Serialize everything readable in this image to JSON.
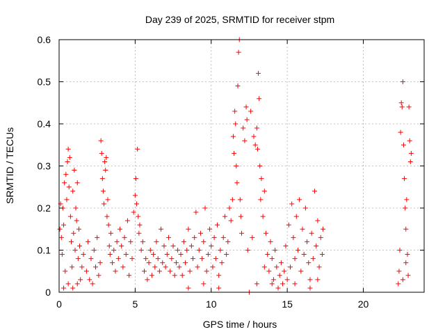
{
  "chart_data": {
    "type": "scatter",
    "title": "Day 239 of 2025, SRMTID for receiver stpm",
    "xlabel": "GPS time / hours",
    "ylabel": "SRMTID / TECUs",
    "xlim": [
      0,
      24
    ],
    "ylim": [
      0,
      0.6
    ],
    "xticks": [
      0,
      5,
      10,
      15,
      20
    ],
    "xtick_labels": [
      "0",
      "5",
      "10",
      "15",
      "20"
    ],
    "yticks": [
      0,
      0.1,
      0.2,
      0.3,
      0.4,
      0.5,
      0.6
    ],
    "ytick_labels": [
      "0",
      "0.1",
      "0.2",
      "0.3",
      "0.4",
      "0.5",
      "0.6"
    ],
    "grid": true,
    "marker": "plus",
    "color": "#ff0000",
    "series": [
      {
        "name": "stpm",
        "points": [
          [
            0.05,
            0.15
          ],
          [
            0.1,
            0.21
          ],
          [
            0.15,
            0.13
          ],
          [
            0.2,
            0.09
          ],
          [
            0.25,
            0.2
          ],
          [
            0.3,
            0.16
          ],
          [
            0.35,
            0.26
          ],
          [
            0.4,
            0.05
          ],
          [
            0.45,
            0.28
          ],
          [
            0.5,
            0.22
          ],
          [
            0.55,
            0.31
          ],
          [
            0.6,
            0.34
          ],
          [
            0.65,
            0.25
          ],
          [
            0.7,
            0.32
          ],
          [
            0.75,
            0.18
          ],
          [
            0.8,
            0.12
          ],
          [
            0.85,
            0.06
          ],
          [
            0.9,
            0.24
          ],
          [
            0.95,
            0.14
          ],
          [
            1.0,
            0.29
          ],
          [
            1.05,
            0.1
          ],
          [
            1.1,
            0.2
          ],
          [
            1.15,
            0.17
          ],
          [
            1.2,
            0.26
          ],
          [
            1.25,
            0.08
          ],
          [
            1.3,
            0.15
          ],
          [
            1.35,
            0.11
          ],
          [
            1.4,
            0.03
          ],
          [
            1.5,
            0.06
          ],
          [
            1.6,
            0.09
          ],
          [
            0.3,
            0.01
          ],
          [
            0.6,
            0.02
          ],
          [
            0.9,
            0.01
          ],
          [
            1.2,
            0.02
          ],
          [
            1.8,
            0.05
          ],
          [
            1.9,
            0.12
          ],
          [
            2.0,
            0.03
          ],
          [
            2.1,
            0.08
          ],
          [
            2.2,
            0.02
          ],
          [
            2.3,
            0.1
          ],
          [
            2.4,
            0.06
          ],
          [
            2.5,
            0.13
          ],
          [
            2.6,
            0.04
          ],
          [
            2.7,
            0.07
          ],
          [
            2.75,
            0.36
          ],
          [
            2.8,
            0.33
          ],
          [
            2.85,
            0.27
          ],
          [
            2.9,
            0.24
          ],
          [
            2.95,
            0.21
          ],
          [
            3.0,
            0.31
          ],
          [
            3.05,
            0.29
          ],
          [
            3.1,
            0.32
          ],
          [
            3.15,
            0.18
          ],
          [
            3.2,
            0.22
          ],
          [
            3.25,
            0.16
          ],
          [
            3.3,
            0.11
          ],
          [
            3.35,
            0.09
          ],
          [
            3.4,
            0.14
          ],
          [
            3.5,
            0.07
          ],
          [
            3.6,
            0.1
          ],
          [
            3.7,
            0.05
          ],
          [
            3.8,
            0.12
          ],
          [
            3.9,
            0.08
          ],
          [
            4.0,
            0.15
          ],
          [
            4.1,
            0.11
          ],
          [
            4.2,
            0.06
          ],
          [
            4.3,
            0.13
          ],
          [
            4.4,
            0.09
          ],
          [
            4.5,
            0.17
          ],
          [
            4.6,
            0.04
          ],
          [
            4.7,
            0.12
          ],
          [
            4.8,
            0.08
          ],
          [
            4.9,
            0.19
          ],
          [
            5.0,
            0.23
          ],
          [
            5.05,
            0.27
          ],
          [
            5.1,
            0.21
          ],
          [
            5.15,
            0.34
          ],
          [
            5.2,
            0.18
          ],
          [
            5.25,
            0.14
          ],
          [
            5.3,
            0.16
          ],
          [
            5.4,
            0.1
          ],
          [
            5.5,
            0.12
          ],
          [
            5.6,
            0.05
          ],
          [
            5.7,
            0.08
          ],
          [
            5.8,
            0.03
          ],
          [
            5.9,
            0.07
          ],
          [
            6.0,
            0.1
          ],
          [
            6.1,
            0.04
          ],
          [
            6.2,
            0.09
          ],
          [
            6.3,
            0.06
          ],
          [
            6.4,
            0.12
          ],
          [
            6.5,
            0.08
          ],
          [
            6.6,
            0.05
          ],
          [
            6.7,
            0.15
          ],
          [
            6.8,
            0.07
          ],
          [
            6.9,
            0.11
          ],
          [
            7.0,
            0.06
          ],
          [
            7.1,
            0.09
          ],
          [
            7.2,
            0.13
          ],
          [
            7.3,
            0.05
          ],
          [
            7.4,
            0.08
          ],
          [
            7.5,
            0.11
          ],
          [
            7.6,
            0.04
          ],
          [
            7.7,
            0.07
          ],
          [
            7.8,
            0.1
          ],
          [
            7.9,
            0.06
          ],
          [
            8.0,
            0.09
          ],
          [
            8.1,
            0.04
          ],
          [
            8.2,
            0.12
          ],
          [
            8.3,
            0.07
          ],
          [
            8.4,
            0.1
          ],
          [
            8.5,
            0.15
          ],
          [
            8.6,
            0.05
          ],
          [
            8.7,
            0.11
          ],
          [
            8.8,
            0.08
          ],
          [
            8.9,
            0.13
          ],
          [
            9.0,
            0.19
          ],
          [
            9.1,
            0.06
          ],
          [
            9.2,
            0.1
          ],
          [
            9.3,
            0.14
          ],
          [
            9.4,
            0.08
          ],
          [
            9.5,
            0.12
          ],
          [
            9.6,
            0.2
          ],
          [
            9.7,
            0.05
          ],
          [
            9.8,
            0.09
          ],
          [
            9.9,
            0.15
          ],
          [
            10.0,
            0.11
          ],
          [
            10.1,
            0.06
          ],
          [
            10.2,
            0.13
          ],
          [
            10.3,
            0.08
          ],
          [
            10.4,
            0.16
          ],
          [
            10.5,
            0.04
          ],
          [
            10.6,
            0.1
          ],
          [
            10.7,
            0.07
          ],
          [
            10.8,
            0.13
          ],
          [
            10.9,
            0.18
          ],
          [
            11.0,
            0.09
          ],
          [
            11.1,
            0.12
          ],
          [
            11.2,
            0.2
          ],
          [
            11.3,
            0.17
          ],
          [
            11.4,
            0.22
          ],
          [
            11.45,
            0.37
          ],
          [
            11.5,
            0.33
          ],
          [
            11.55,
            0.43
          ],
          [
            11.6,
            0.4
          ],
          [
            11.65,
            0.3
          ],
          [
            11.7,
            0.26
          ],
          [
            11.75,
            0.49
          ],
          [
            11.8,
            0.57
          ],
          [
            11.85,
            0.6
          ],
          [
            11.9,
            0.22
          ],
          [
            11.95,
            0.18
          ],
          [
            12.0,
            0.14
          ],
          [
            12.1,
            0.39
          ],
          [
            12.2,
            0.36
          ],
          [
            12.3,
            0.44
          ],
          [
            12.35,
            0.41
          ],
          [
            12.4,
            0.1
          ],
          [
            12.5,
            0.0
          ],
          [
            12.6,
            0.43
          ],
          [
            12.7,
            0.13
          ],
          [
            12.8,
            0.37
          ],
          [
            12.9,
            0.35
          ],
          [
            13.0,
            0.39
          ],
          [
            13.05,
            0.34
          ],
          [
            13.1,
            0.52
          ],
          [
            13.15,
            0.46
          ],
          [
            13.2,
            0.3
          ],
          [
            13.25,
            0.22
          ],
          [
            13.3,
            0.27
          ],
          [
            13.4,
            0.18
          ],
          [
            13.5,
            0.24
          ],
          [
            13.6,
            0.14
          ],
          [
            13.7,
            0.09
          ],
          [
            13.8,
            0.05
          ],
          [
            13.9,
            0.12
          ],
          [
            14.0,
            0.08
          ],
          [
            14.1,
            0.03
          ],
          [
            14.2,
            0.1
          ],
          [
            14.3,
            0.06
          ],
          [
            14.4,
            0.01
          ],
          [
            14.5,
            0.04
          ],
          [
            14.6,
            0.07
          ],
          [
            14.7,
            0.02
          ],
          [
            14.8,
            0.05
          ],
          [
            14.9,
            0.11
          ],
          [
            15.0,
            0.03
          ],
          [
            15.1,
            0.16
          ],
          [
            15.2,
            0.06
          ],
          [
            15.3,
            0.21
          ],
          [
            15.4,
            0.13
          ],
          [
            15.5,
            0.08
          ],
          [
            15.6,
            0.18
          ],
          [
            15.7,
            0.1
          ],
          [
            15.8,
            0.22
          ],
          [
            15.9,
            0.05
          ],
          [
            16.0,
            0.15
          ],
          [
            16.1,
            0.09
          ],
          [
            16.2,
            0.2
          ],
          [
            16.3,
            0.12
          ],
          [
            16.4,
            0.07
          ],
          [
            16.5,
            0.03
          ],
          [
            16.6,
            0.14
          ],
          [
            16.7,
            0.08
          ],
          [
            16.8,
            0.24
          ],
          [
            16.9,
            0.11
          ],
          [
            17.0,
            0.17
          ],
          [
            17.1,
            0.06
          ],
          [
            17.2,
            0.13
          ],
          [
            17.3,
            0.09
          ],
          [
            17.35,
            0.15
          ],
          [
            13.0,
            0.02
          ],
          [
            13.5,
            0.06
          ],
          [
            14.0,
            0.02
          ],
          [
            15.5,
            0.02
          ],
          [
            16.5,
            0.01
          ],
          [
            17.0,
            0.03
          ],
          [
            10.5,
            0.01
          ],
          [
            9.5,
            0.02
          ],
          [
            8.5,
            0.01
          ],
          [
            22.3,
            0.02
          ],
          [
            22.35,
            0.05
          ],
          [
            22.4,
            0.1
          ],
          [
            22.45,
            0.38
          ],
          [
            22.5,
            0.45
          ],
          [
            22.55,
            0.44
          ],
          [
            22.6,
            0.5
          ],
          [
            22.65,
            0.35
          ],
          [
            22.7,
            0.27
          ],
          [
            22.75,
            0.2
          ],
          [
            22.8,
            0.15
          ],
          [
            22.85,
            0.22
          ],
          [
            22.9,
            0.09
          ],
          [
            22.95,
            0.04
          ],
          [
            23.0,
            0.44
          ],
          [
            23.05,
            0.36
          ],
          [
            23.1,
            0.31
          ],
          [
            23.15,
            0.33
          ],
          [
            22.6,
            0.03
          ],
          [
            22.8,
            0.07
          ]
        ]
      }
    ]
  }
}
